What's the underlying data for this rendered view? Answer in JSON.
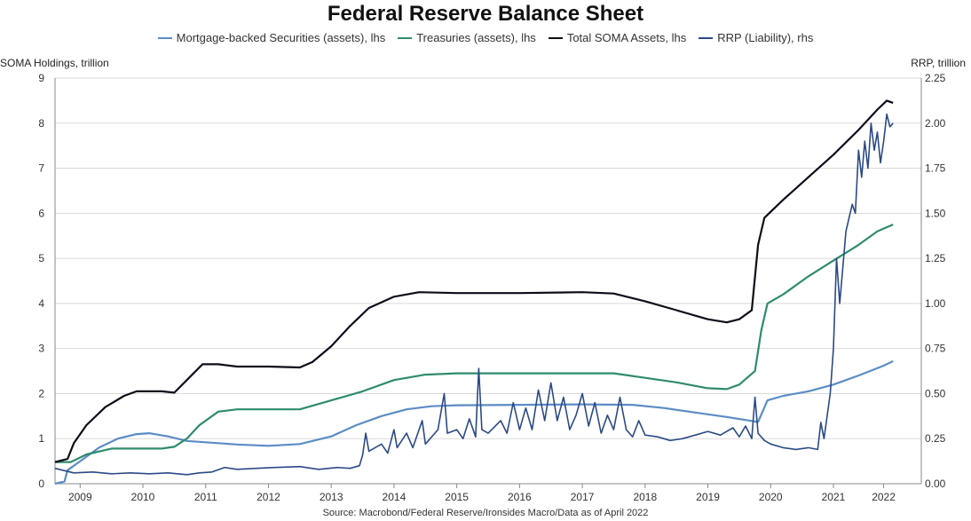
{
  "chart_data": {
    "type": "line",
    "title": "Federal Reserve Balance Sheet",
    "left_axis_title": "SOMA Holdings, trillion",
    "right_axis_title": "RRP, trillion",
    "source": "Source: Macrobond/Federal Reserve/Ironsides Macro/Data as of April 2022",
    "x_range": [
      2008.6,
      2022.4
    ],
    "x_ticks": [
      {
        "v": 2009.0,
        "label": "2009"
      },
      {
        "v": 2010.0,
        "label": "2010"
      },
      {
        "v": 2011.0,
        "label": "2011"
      },
      {
        "v": 2012.0,
        "label": "2012"
      },
      {
        "v": 2013.0,
        "label": "2013"
      },
      {
        "v": 2014.0,
        "label": "2014"
      },
      {
        "v": 2015.0,
        "label": "2015"
      },
      {
        "v": 2016.0,
        "label": "2016"
      },
      {
        "v": 2017.0,
        "label": "2017"
      },
      {
        "v": 2018.0,
        "label": "2018"
      },
      {
        "v": 2019.0,
        "label": "2019"
      },
      {
        "v": 2020.0,
        "label": "2020"
      },
      {
        "v": 2021.0,
        "label": "2021"
      },
      {
        "v": 2021.8,
        "label": "2022"
      }
    ],
    "y_left": {
      "range": [
        0,
        9
      ],
      "ticks": [
        "0",
        "1",
        "2",
        "3",
        "4",
        "5",
        "6",
        "7",
        "8",
        "9"
      ]
    },
    "y_right": {
      "range": [
        0,
        2.25
      ],
      "ticks": [
        "0.00",
        "0.25",
        "0.50",
        "0.75",
        "1.00",
        "1.25",
        "1.50",
        "1.75",
        "2.00",
        "2.25"
      ]
    },
    "grid": "horizontal",
    "legend_position": "top-center",
    "series": [
      {
        "name": "Mortgage-backed Securities (assets), lhs",
        "axis": "left",
        "color": "#5b8cc4",
        "points": [
          [
            2008.6,
            0.0
          ],
          [
            2008.75,
            0.05
          ],
          [
            2008.8,
            0.3
          ],
          [
            2009.0,
            0.5
          ],
          [
            2009.3,
            0.8
          ],
          [
            2009.6,
            1.0
          ],
          [
            2009.9,
            1.1
          ],
          [
            2010.1,
            1.12
          ],
          [
            2010.4,
            1.05
          ],
          [
            2010.7,
            0.95
          ],
          [
            2011.0,
            0.92
          ],
          [
            2011.5,
            0.87
          ],
          [
            2012.0,
            0.84
          ],
          [
            2012.5,
            0.88
          ],
          [
            2013.0,
            1.05
          ],
          [
            2013.4,
            1.3
          ],
          [
            2013.8,
            1.5
          ],
          [
            2014.2,
            1.65
          ],
          [
            2014.6,
            1.72
          ],
          [
            2015.0,
            1.74
          ],
          [
            2016.0,
            1.75
          ],
          [
            2017.0,
            1.76
          ],
          [
            2017.8,
            1.75
          ],
          [
            2018.3,
            1.68
          ],
          [
            2018.8,
            1.58
          ],
          [
            2019.3,
            1.48
          ],
          [
            2019.8,
            1.37
          ],
          [
            2019.95,
            1.85
          ],
          [
            2020.2,
            1.95
          ],
          [
            2020.6,
            2.05
          ],
          [
            2021.0,
            2.2
          ],
          [
            2021.4,
            2.4
          ],
          [
            2021.8,
            2.62
          ],
          [
            2021.95,
            2.72
          ]
        ]
      },
      {
        "name": "Treasuries (assets), lhs",
        "axis": "left",
        "color": "#2e8b6e",
        "points": [
          [
            2008.6,
            0.48
          ],
          [
            2008.85,
            0.48
          ],
          [
            2009.1,
            0.65
          ],
          [
            2009.5,
            0.78
          ],
          [
            2009.9,
            0.78
          ],
          [
            2010.3,
            0.78
          ],
          [
            2010.5,
            0.82
          ],
          [
            2010.7,
            1.0
          ],
          [
            2010.9,
            1.3
          ],
          [
            2011.2,
            1.6
          ],
          [
            2011.5,
            1.65
          ],
          [
            2012.0,
            1.65
          ],
          [
            2012.5,
            1.65
          ],
          [
            2013.0,
            1.85
          ],
          [
            2013.5,
            2.05
          ],
          [
            2014.0,
            2.3
          ],
          [
            2014.5,
            2.42
          ],
          [
            2015.0,
            2.45
          ],
          [
            2016.0,
            2.45
          ],
          [
            2017.0,
            2.45
          ],
          [
            2017.5,
            2.45
          ],
          [
            2018.0,
            2.35
          ],
          [
            2018.5,
            2.25
          ],
          [
            2019.0,
            2.12
          ],
          [
            2019.3,
            2.1
          ],
          [
            2019.5,
            2.2
          ],
          [
            2019.75,
            2.5
          ],
          [
            2019.85,
            3.4
          ],
          [
            2019.95,
            4.0
          ],
          [
            2020.2,
            4.2
          ],
          [
            2020.6,
            4.6
          ],
          [
            2021.0,
            4.95
          ],
          [
            2021.4,
            5.3
          ],
          [
            2021.7,
            5.6
          ],
          [
            2021.95,
            5.75
          ]
        ]
      },
      {
        "name": "Total SOMA Assets, lhs",
        "axis": "left",
        "color": "#0d0d1a",
        "points": [
          [
            2008.6,
            0.48
          ],
          [
            2008.8,
            0.55
          ],
          [
            2008.9,
            0.9
          ],
          [
            2009.1,
            1.3
          ],
          [
            2009.4,
            1.7
          ],
          [
            2009.7,
            1.95
          ],
          [
            2009.9,
            2.05
          ],
          [
            2010.3,
            2.05
          ],
          [
            2010.5,
            2.02
          ],
          [
            2010.7,
            2.3
          ],
          [
            2010.95,
            2.65
          ],
          [
            2011.2,
            2.65
          ],
          [
            2011.5,
            2.6
          ],
          [
            2012.0,
            2.6
          ],
          [
            2012.5,
            2.58
          ],
          [
            2012.7,
            2.7
          ],
          [
            2013.0,
            3.05
          ],
          [
            2013.3,
            3.5
          ],
          [
            2013.6,
            3.9
          ],
          [
            2014.0,
            4.15
          ],
          [
            2014.4,
            4.25
          ],
          [
            2015.0,
            4.23
          ],
          [
            2016.0,
            4.23
          ],
          [
            2017.0,
            4.25
          ],
          [
            2017.5,
            4.22
          ],
          [
            2018.0,
            4.05
          ],
          [
            2018.5,
            3.85
          ],
          [
            2019.0,
            3.65
          ],
          [
            2019.3,
            3.58
          ],
          [
            2019.5,
            3.65
          ],
          [
            2019.7,
            3.85
          ],
          [
            2019.8,
            5.3
          ],
          [
            2019.9,
            5.9
          ],
          [
            2020.2,
            6.3
          ],
          [
            2020.6,
            6.8
          ],
          [
            2021.0,
            7.3
          ],
          [
            2021.4,
            7.85
          ],
          [
            2021.7,
            8.3
          ],
          [
            2021.85,
            8.5
          ],
          [
            2021.95,
            8.45
          ]
        ]
      },
      {
        "name": "RRP (Liability), rhs",
        "axis": "right",
        "color": "#2b4a86",
        "points": [
          [
            2008.6,
            0.085
          ],
          [
            2008.9,
            0.06
          ],
          [
            2009.2,
            0.065
          ],
          [
            2009.5,
            0.055
          ],
          [
            2009.8,
            0.06
          ],
          [
            2010.1,
            0.055
          ],
          [
            2010.4,
            0.06
          ],
          [
            2010.7,
            0.05
          ],
          [
            2010.9,
            0.06
          ],
          [
            2011.1,
            0.065
          ],
          [
            2011.3,
            0.09
          ],
          [
            2011.5,
            0.08
          ],
          [
            2011.8,
            0.085
          ],
          [
            2012.1,
            0.09
          ],
          [
            2012.5,
            0.095
          ],
          [
            2012.8,
            0.08
          ],
          [
            2013.1,
            0.09
          ],
          [
            2013.3,
            0.085
          ],
          [
            2013.45,
            0.1
          ],
          [
            2013.5,
            0.16
          ],
          [
            2013.55,
            0.28
          ],
          [
            2013.6,
            0.18
          ],
          [
            2013.8,
            0.22
          ],
          [
            2013.9,
            0.17
          ],
          [
            2014.0,
            0.3
          ],
          [
            2014.05,
            0.2
          ],
          [
            2014.2,
            0.28
          ],
          [
            2014.3,
            0.2
          ],
          [
            2014.45,
            0.35
          ],
          [
            2014.5,
            0.22
          ],
          [
            2014.7,
            0.3
          ],
          [
            2014.8,
            0.5
          ],
          [
            2014.85,
            0.28
          ],
          [
            2015.0,
            0.3
          ],
          [
            2015.1,
            0.25
          ],
          [
            2015.2,
            0.36
          ],
          [
            2015.3,
            0.26
          ],
          [
            2015.35,
            0.64
          ],
          [
            2015.4,
            0.3
          ],
          [
            2015.5,
            0.28
          ],
          [
            2015.7,
            0.35
          ],
          [
            2015.8,
            0.28
          ],
          [
            2015.9,
            0.45
          ],
          [
            2016.0,
            0.3
          ],
          [
            2016.1,
            0.42
          ],
          [
            2016.2,
            0.3
          ],
          [
            2016.3,
            0.52
          ],
          [
            2016.4,
            0.35
          ],
          [
            2016.5,
            0.56
          ],
          [
            2016.6,
            0.35
          ],
          [
            2016.7,
            0.48
          ],
          [
            2016.8,
            0.3
          ],
          [
            2016.9,
            0.38
          ],
          [
            2017.0,
            0.5
          ],
          [
            2017.1,
            0.32
          ],
          [
            2017.2,
            0.45
          ],
          [
            2017.3,
            0.28
          ],
          [
            2017.4,
            0.38
          ],
          [
            2017.5,
            0.3
          ],
          [
            2017.6,
            0.48
          ],
          [
            2017.7,
            0.3
          ],
          [
            2017.8,
            0.26
          ],
          [
            2017.9,
            0.35
          ],
          [
            2018.0,
            0.27
          ],
          [
            2018.2,
            0.26
          ],
          [
            2018.4,
            0.24
          ],
          [
            2018.6,
            0.25
          ],
          [
            2018.8,
            0.27
          ],
          [
            2019.0,
            0.29
          ],
          [
            2019.2,
            0.27
          ],
          [
            2019.4,
            0.31
          ],
          [
            2019.5,
            0.26
          ],
          [
            2019.6,
            0.32
          ],
          [
            2019.7,
            0.25
          ],
          [
            2019.75,
            0.48
          ],
          [
            2019.8,
            0.28
          ],
          [
            2019.9,
            0.24
          ],
          [
            2020.0,
            0.22
          ],
          [
            2020.2,
            0.2
          ],
          [
            2020.4,
            0.19
          ],
          [
            2020.6,
            0.2
          ],
          [
            2020.75,
            0.19
          ],
          [
            2020.8,
            0.34
          ],
          [
            2020.85,
            0.25
          ],
          [
            2020.95,
            0.5
          ],
          [
            2021.0,
            0.75
          ],
          [
            2021.05,
            1.25
          ],
          [
            2021.1,
            1.0
          ],
          [
            2021.2,
            1.4
          ],
          [
            2021.3,
            1.55
          ],
          [
            2021.35,
            1.5
          ],
          [
            2021.4,
            1.85
          ],
          [
            2021.45,
            1.7
          ],
          [
            2021.5,
            1.9
          ],
          [
            2021.55,
            1.75
          ],
          [
            2021.6,
            2.0
          ],
          [
            2021.65,
            1.85
          ],
          [
            2021.7,
            1.95
          ],
          [
            2021.75,
            1.78
          ],
          [
            2021.8,
            1.9
          ],
          [
            2021.85,
            2.05
          ],
          [
            2021.9,
            1.98
          ],
          [
            2021.95,
            2.0
          ]
        ]
      }
    ]
  }
}
